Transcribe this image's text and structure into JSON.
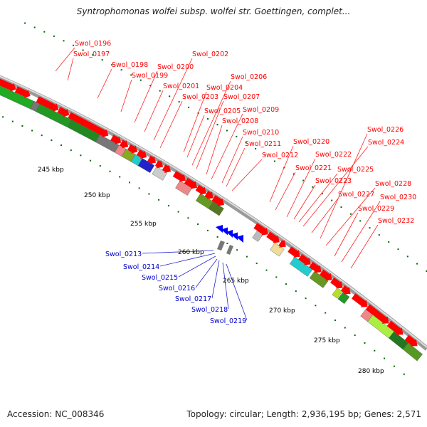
{
  "title": "Syntrophomonas wolfei subsp. wolfei str. Goettingen, complet...",
  "footer": {
    "accession": "Accession: NC_008346",
    "summary": "Topology: circular; Length: 2,936,195 bp; Genes: 2,571"
  },
  "colors": {
    "red_label": "#ff0000",
    "blue_label": "#0000cc",
    "forward_gene": "#ff0000",
    "reverse_gene": "#0000ff",
    "backbone": "#999999",
    "tick_dots": "#006600"
  },
  "kbp_labels": [
    "245 kbp",
    "250 kbp",
    "255 kbp",
    "260 kbp",
    "265 kbp",
    "270 kbp",
    "275 kbp",
    "280 kbp"
  ],
  "top_gene_labels": [
    "Swol_0196",
    "Swol_0197",
    "Swol_0198",
    "Swol_0199",
    "Swol_0200",
    "Swol_0201",
    "Swol_0202",
    "Swol_0203",
    "Swol_0204",
    "Swol_0205",
    "Swol_0206",
    "Swol_0207",
    "Swol_0208",
    "Swol_0209",
    "Swol_0210",
    "Swol_0211",
    "Swol_0212",
    "Swol_0220",
    "Swol_0221",
    "Swol_0222",
    "Swol_0223",
    "Swol_0224",
    "Swol_0225",
    "Swol_0226",
    "Swol_0227",
    "Swol_0228",
    "Swol_0229",
    "Swol_0230",
    "Swol_0232"
  ],
  "bottom_gene_labels": [
    "Swol_0213",
    "Swol_0214",
    "Swol_0215",
    "Swol_0216",
    "Swol_0217",
    "Swol_0218",
    "Swol_0219"
  ]
}
